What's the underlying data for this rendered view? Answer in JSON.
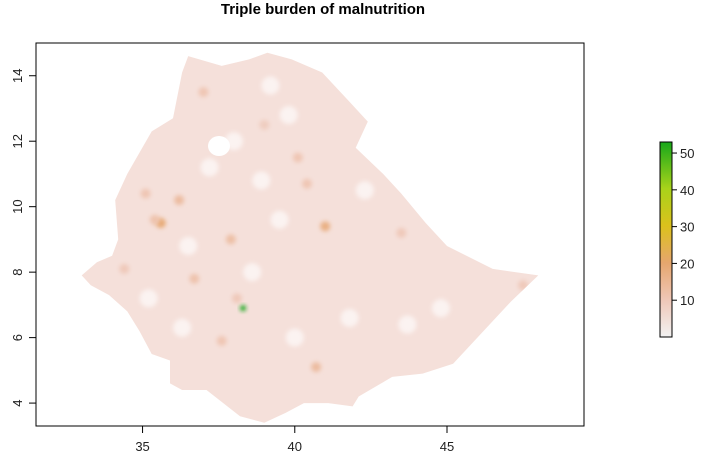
{
  "title": "Triple burden of malnutrition",
  "x_axis": {
    "ticks": [
      "35",
      "40",
      "45"
    ],
    "range": [
      31.5,
      49.5
    ]
  },
  "y_axis": {
    "ticks": [
      "4",
      "6",
      "8",
      "10",
      "12",
      "14"
    ],
    "range": [
      3.3,
      15.0
    ]
  },
  "legend": {
    "ticks": [
      "10",
      "20",
      "30",
      "40",
      "50"
    ],
    "range": [
      0,
      53
    ],
    "colors": [
      "#f2f2f2",
      "#efc7b7",
      "#e6a66e",
      "#dcc11c",
      "#a9d31a",
      "#18a81a"
    ]
  },
  "colors": {
    "base": "#f5e0da",
    "hotspot_orange": "#e4a56c",
    "hotspot_green": "#17a31a",
    "frame": "#000000"
  },
  "hotspots": [
    {
      "lon": 35.6,
      "lat": 9.5,
      "v": 20
    },
    {
      "lon": 41.0,
      "lat": 9.4,
      "v": 18
    },
    {
      "lon": 38.3,
      "lat": 6.9,
      "v": 53
    },
    {
      "lon": 40.7,
      "lat": 5.1,
      "v": 14
    },
    {
      "lon": 36.2,
      "lat": 10.2,
      "v": 14
    },
    {
      "lon": 37.9,
      "lat": 9.0,
      "v": 13
    },
    {
      "lon": 36.7,
      "lat": 7.8,
      "v": 12
    },
    {
      "lon": 37.0,
      "lat": 13.5,
      "v": 11
    },
    {
      "lon": 40.1,
      "lat": 11.5,
      "v": 11
    },
    {
      "lon": 37.6,
      "lat": 5.9,
      "v": 11
    },
    {
      "lon": 40.4,
      "lat": 10.7,
      "v": 11
    },
    {
      "lon": 35.1,
      "lat": 10.4,
      "v": 11
    },
    {
      "lon": 34.4,
      "lat": 8.1,
      "v": 10
    },
    {
      "lon": 43.5,
      "lat": 9.2,
      "v": 10
    },
    {
      "lon": 47.5,
      "lat": 7.6,
      "v": 10
    },
    {
      "lon": 39.0,
      "lat": 12.5,
      "v": 9
    },
    {
      "lon": 38.1,
      "lat": 7.2,
      "v": 10
    },
    {
      "lon": 35.4,
      "lat": 9.6,
      "v": 12
    }
  ]
}
